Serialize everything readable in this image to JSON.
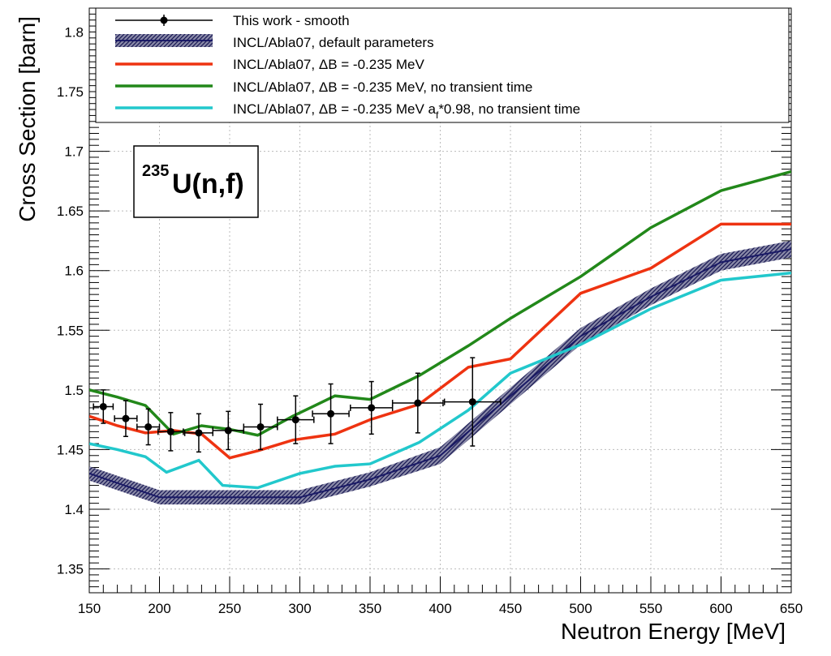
{
  "chart_data": {
    "type": "line",
    "xlabel": "Neutron Energy [MeV]",
    "ylabel": "Cross Section [barn]",
    "xlim": [
      150,
      650
    ],
    "ylim": [
      1.33,
      1.82
    ],
    "x_ticks": [
      150,
      200,
      250,
      300,
      350,
      400,
      450,
      500,
      550,
      600,
      650
    ],
    "y_ticks": [
      1.35,
      1.4,
      1.45,
      1.5,
      1.55,
      1.6,
      1.65,
      1.7,
      1.75,
      1.8
    ],
    "grid": true,
    "legend_position": "top",
    "annotation": {
      "superscript": "235",
      "text": "U(n,f)"
    },
    "series": [
      {
        "name": "INCL/Abla07, default parameters",
        "kind": "band",
        "color": "#1a1a66",
        "x": [
          150,
          200,
          250,
          300,
          350,
          400,
          450,
          500,
          550,
          600,
          650
        ],
        "y": [
          1.43,
          1.41,
          1.41,
          1.41,
          1.425,
          1.445,
          1.495,
          1.545,
          1.578,
          1.607,
          1.618
        ],
        "err": [
          0.006,
          0.006,
          0.006,
          0.006,
          0.006,
          0.007,
          0.007,
          0.007,
          0.007,
          0.007,
          0.007
        ]
      },
      {
        "name": "This work - smooth",
        "kind": "points",
        "color": "#000000",
        "x": [
          160,
          176,
          192,
          208,
          228,
          249,
          272,
          297,
          322,
          351,
          384,
          423
        ],
        "y": [
          1.486,
          1.476,
          1.469,
          1.465,
          1.464,
          1.466,
          1.469,
          1.475,
          1.48,
          1.485,
          1.489,
          1.49
        ],
        "xerr": [
          7,
          8,
          8,
          9,
          10,
          11,
          12,
          13,
          13,
          15,
          18,
          20
        ],
        "yerr": [
          0.014,
          0.015,
          0.015,
          0.016,
          0.016,
          0.016,
          0.019,
          0.02,
          0.025,
          0.022,
          0.025,
          0.037
        ]
      },
      {
        "name": "INCL/Abla07, ΔB = -0.235 MeV",
        "kind": "line",
        "color": "#ee3311",
        "x": [
          150,
          170,
          190,
          210,
          230,
          250,
          270,
          295,
          325,
          350,
          385,
          420,
          450,
          500,
          550,
          600,
          650
        ],
        "y": [
          1.478,
          1.47,
          1.464,
          1.466,
          1.463,
          1.443,
          1.449,
          1.458,
          1.463,
          1.475,
          1.488,
          1.519,
          1.526,
          1.581,
          1.602,
          1.639,
          1.639
        ]
      },
      {
        "name": "INCL/Abla07, ΔB = -0.235 MeV, no transient time",
        "kind": "line",
        "color": "#22881a",
        "x": [
          150,
          170,
          190,
          210,
          230,
          250,
          270,
          295,
          325,
          350,
          385,
          420,
          450,
          500,
          550,
          600,
          650
        ],
        "y": [
          1.5,
          1.494,
          1.487,
          1.463,
          1.47,
          1.467,
          1.462,
          1.478,
          1.495,
          1.492,
          1.512,
          1.537,
          1.56,
          1.595,
          1.636,
          1.667,
          1.683
        ]
      },
      {
        "name": "INCL/Abla07, ΔB = -0.235 MeV a_f*0.98, no transient time",
        "kind": "line",
        "color": "#22c8cc",
        "x": [
          150,
          170,
          190,
          205,
          228,
          245,
          270,
          300,
          325,
          350,
          385,
          420,
          450,
          500,
          550,
          600,
          650
        ],
        "y": [
          1.455,
          1.45,
          1.444,
          1.431,
          1.441,
          1.42,
          1.418,
          1.43,
          1.436,
          1.438,
          1.456,
          1.483,
          1.514,
          1.538,
          1.568,
          1.592,
          1.598
        ]
      }
    ]
  },
  "legend": [
    {
      "label": "This work - smooth"
    },
    {
      "label": "INCL/Abla07, default parameters"
    },
    {
      "label": "INCL/Abla07, ΔB = -0.235 MeV"
    },
    {
      "label": "INCL/Abla07, ΔB = -0.235 MeV, no transient time"
    },
    {
      "label_pre": "INCL/Abla07, ΔB = -0.235 MeV a",
      "label_sub": "f",
      "label_post": "*0.98, no transient time"
    }
  ]
}
